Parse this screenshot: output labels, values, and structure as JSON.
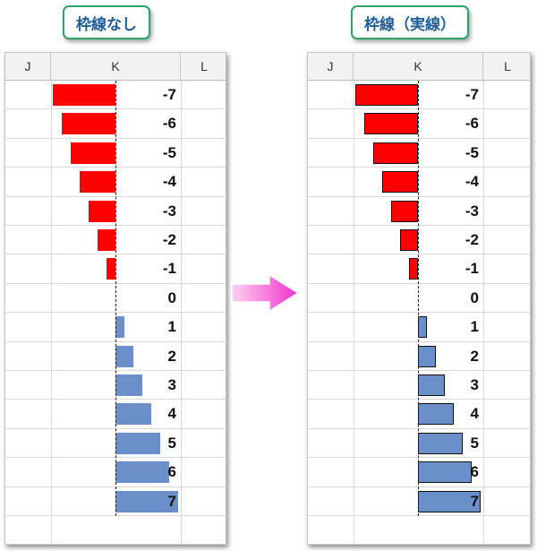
{
  "left_panel": {
    "title": "枠線なし",
    "bordered": false
  },
  "right_panel": {
    "title": "枠線（実線）",
    "bordered": true
  },
  "columns": [
    "J",
    "K",
    "L"
  ],
  "values": [
    -7,
    -6,
    -5,
    -4,
    -3,
    -2,
    -1,
    0,
    1,
    2,
    3,
    4,
    5,
    6,
    7
  ],
  "colors": {
    "negative": "#ff0000",
    "positive": "#6b8fc8",
    "title": "#1f5d99",
    "label_border": "#2ea36a",
    "arrow": "#ee44cc"
  },
  "arrow_icon": "right-arrow-icon"
}
